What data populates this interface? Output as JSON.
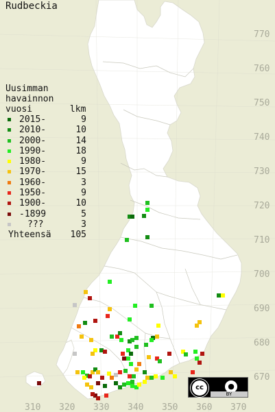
{
  "title": "Rudbeckia",
  "legend": {
    "header": [
      "Uusimman",
      "havainnon",
      "vuosi       lkm"
    ],
    "rows": [
      {
        "label": "2015-",
        "count": "9",
        "color": "#0a6b0a"
      },
      {
        "label": "2010-",
        "count": "10",
        "color": "#138c13"
      },
      {
        "label": "2000-",
        "count": "14",
        "color": "#1fbf1f"
      },
      {
        "label": "1990-",
        "count": "18",
        "color": "#22ee22"
      },
      {
        "label": "1980-",
        "count": "9",
        "color": "#ffff00"
      },
      {
        "label": "1970-",
        "count": "15",
        "color": "#f4c20d"
      },
      {
        "label": "1960-",
        "count": "3",
        "color": "#f07a10"
      },
      {
        "label": "1950-",
        "count": "9",
        "color": "#e8251a"
      },
      {
        "label": "1900-",
        "count": "10",
        "color": "#b0140f"
      },
      {
        "label": "-1899",
        "count": "5",
        "color": "#7a0b0b"
      },
      {
        "label": "???",
        "count": "3",
        "color": "#c6c6c6"
      }
    ],
    "total_label": "Yhteensä",
    "total_count": "105"
  },
  "y_ticks": [
    "770",
    "760",
    "750",
    "740",
    "730",
    "720",
    "710",
    "700",
    "690",
    "680",
    "670"
  ],
  "x_ticks": [
    "310",
    "320",
    "330",
    "340",
    "350",
    "360",
    "370"
  ],
  "colors": {
    "background": "#ebecd6",
    "land": "#ffffff",
    "border": "#c8c8bc",
    "axis_text": "#a9aa9a"
  },
  "license": {
    "badge": "cc",
    "by": "BY",
    "icon_names": [
      "creative-commons-icon",
      "attribution-icon"
    ]
  }
}
